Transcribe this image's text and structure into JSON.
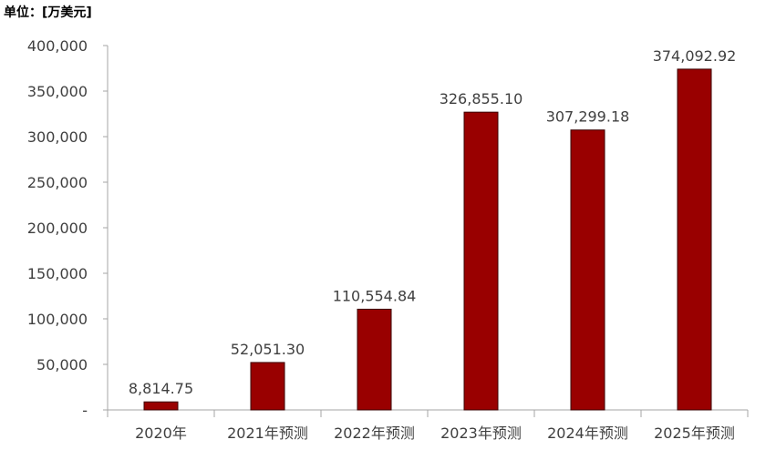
{
  "chart_data": {
    "type": "bar",
    "unit_label": "单位：[万美元]",
    "categories": [
      "2020年",
      "2021年预测",
      "2022年预测",
      "2023年预测",
      "2024年预测",
      "2025年预测"
    ],
    "values": [
      8814.75,
      52051.3,
      110554.84,
      326855.1,
      307299.18,
      374092.92
    ],
    "value_labels": [
      "8,814.75",
      "52,051.30",
      "110,554.84",
      "326,855.10",
      "307,299.18",
      "374,092.92"
    ],
    "ylim": [
      0,
      400000
    ],
    "yticks": [
      0,
      50000,
      100000,
      150000,
      200000,
      250000,
      300000,
      350000,
      400000
    ],
    "ytick_labels": [
      "-",
      "50,000",
      "100,000",
      "150,000",
      "200,000",
      "250,000",
      "300,000",
      "350,000",
      "400,000"
    ],
    "title": "",
    "xlabel": "",
    "ylabel": "",
    "grid": false,
    "colors": {
      "bar": "#990000",
      "bar_stroke": "#3a0000",
      "axis": "#a6a6a6"
    }
  }
}
